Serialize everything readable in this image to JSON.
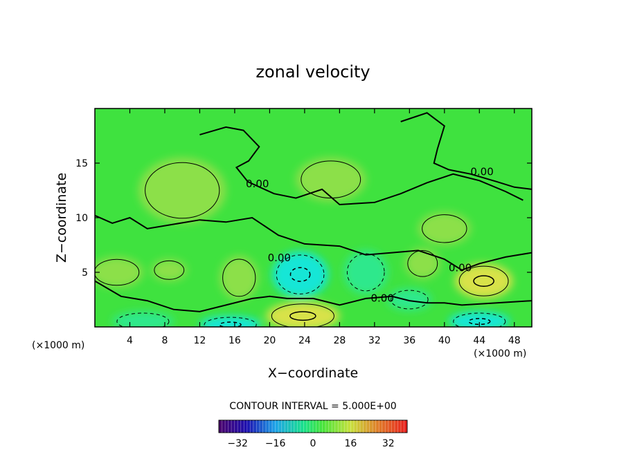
{
  "chart_data": {
    "type": "heatmap",
    "title": "zonal velocity",
    "xlabel": "X−coordinate",
    "ylabel": "Z−coordinate",
    "x_unit_left": "(×1000 m)",
    "x_unit_right": "(×1000 m)",
    "xlim": [
      0,
      50
    ],
    "ylim": [
      0,
      20
    ],
    "xticks": [
      4,
      8,
      12,
      16,
      20,
      24,
      28,
      32,
      36,
      40,
      44,
      48
    ],
    "xtick_labels": [
      "4",
      "8",
      "12",
      "16",
      "20",
      "24",
      "28",
      "32",
      "36",
      "40",
      "44",
      "48"
    ],
    "yticks": [
      5,
      10,
      15
    ],
    "ytick_labels": [
      "5",
      "10",
      "15"
    ],
    "contour_interval_text": "CONTOUR INTERVAL = 5.000E+00",
    "contour_labels": [
      {
        "text": "0.00",
        "x": 18.6,
        "y": 12.8
      },
      {
        "text": "0.00",
        "x": 44.3,
        "y": 13.9
      },
      {
        "text": "0.00",
        "x": 21.1,
        "y": 6.0
      },
      {
        "text": "0.00",
        "x": 41.8,
        "y": 5.1
      },
      {
        "text": "0.00",
        "x": 32.9,
        "y": 2.3
      }
    ],
    "colorbar": {
      "range": [
        -40,
        40
      ],
      "ticks": [
        -32,
        -16,
        0,
        16,
        32
      ],
      "tick_labels": [
        "−32",
        "−16",
        "0",
        "16",
        "32"
      ]
    },
    "colors": {
      "background_field": "#3fe23f",
      "positive_weak": "#8ce04a",
      "positive_strong": "#d8e24a",
      "negative_weak": "#2ee88c",
      "negative_strong": "#14e6d6",
      "contour": "#000000"
    },
    "anomalies": [
      {
        "x": 2.5,
        "y": 5.0,
        "rx": 3.0,
        "ry": 1.4,
        "v": 8
      },
      {
        "x": 8.5,
        "y": 5.2,
        "rx": 2.0,
        "ry": 1.0,
        "v": 6
      },
      {
        "x": 16.5,
        "y": 4.5,
        "rx": 2.2,
        "ry": 2.0,
        "v": 9
      },
      {
        "x": 23.5,
        "y": 4.8,
        "rx": 3.2,
        "ry": 2.1,
        "v": -15
      },
      {
        "x": 23.8,
        "y": 1.0,
        "rx": 4.2,
        "ry": 1.3,
        "v": 14
      },
      {
        "x": 15.5,
        "y": 0.2,
        "rx": 3.5,
        "ry": 0.8,
        "v": -14
      },
      {
        "x": 5.5,
        "y": 0.5,
        "rx": 3.5,
        "ry": 0.9,
        "v": -8
      },
      {
        "x": 31.0,
        "y": 5.0,
        "rx": 2.5,
        "ry": 2.0,
        "v": -6
      },
      {
        "x": 37.5,
        "y": 5.8,
        "rx": 2.0,
        "ry": 1.4,
        "v": 7
      },
      {
        "x": 44.5,
        "y": 4.2,
        "rx": 3.3,
        "ry": 1.6,
        "v": 12
      },
      {
        "x": 44.0,
        "y": 0.5,
        "rx": 3.5,
        "ry": 0.9,
        "v": -15
      },
      {
        "x": 36.0,
        "y": 2.5,
        "rx": 2.5,
        "ry": 1.0,
        "v": -5
      },
      {
        "x": 27.0,
        "y": 13.5,
        "rx": 4.0,
        "ry": 2.0,
        "v": 3
      },
      {
        "x": 10.0,
        "y": 12.5,
        "rx": 5.0,
        "ry": 3.0,
        "v": 2
      },
      {
        "x": 40.0,
        "y": 9.0,
        "rx": 3.0,
        "ry": 1.5,
        "v": 3
      }
    ]
  }
}
